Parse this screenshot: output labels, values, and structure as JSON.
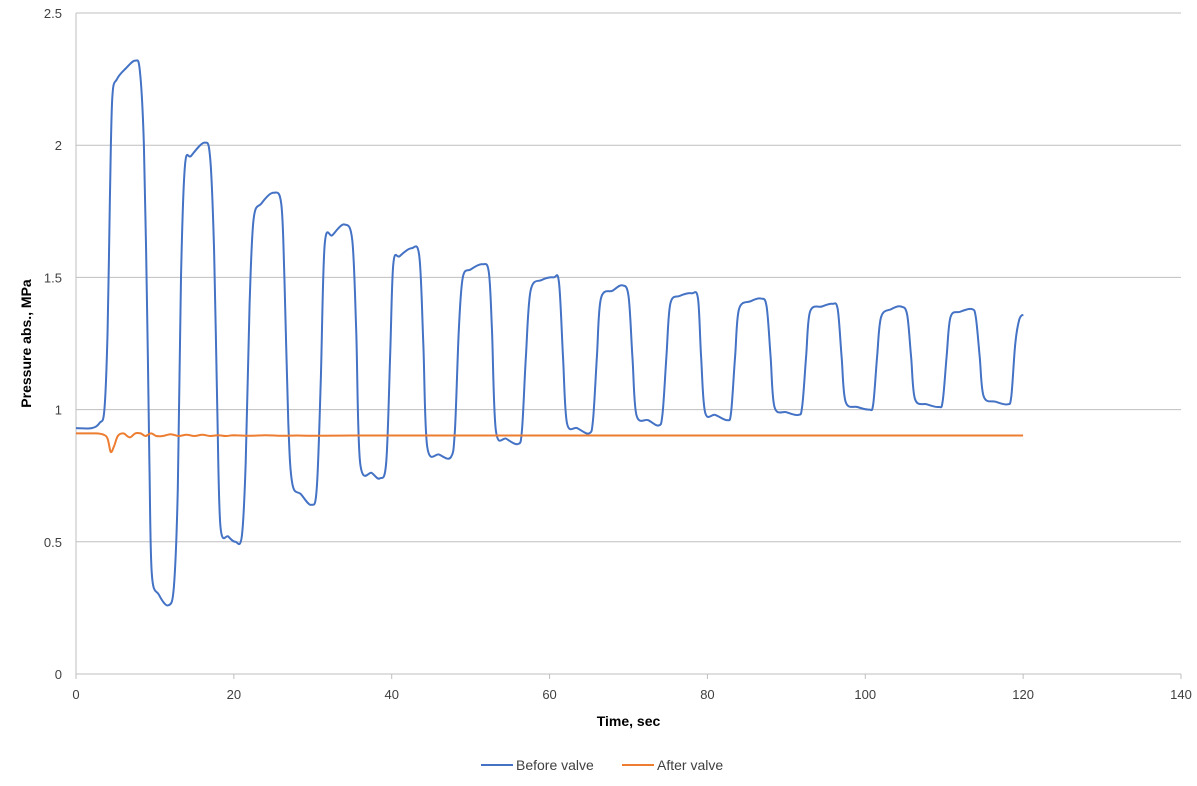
{
  "chart_data": {
    "type": "line",
    "xlabel": "Time, sec",
    "ylabel": "Pressure abs., MPa",
    "xlim": [
      0,
      140
    ],
    "ylim": [
      0,
      2.5
    ],
    "xticks": [
      "0",
      "20",
      "40",
      "60",
      "80",
      "100",
      "120",
      "140"
    ],
    "yticks": [
      "0",
      "0.5",
      "1",
      "1.5",
      "2",
      "2.5"
    ],
    "grid": "horizontal",
    "legend_position": "bottom",
    "colors": {
      "before": "#4472C4",
      "after": "#ED7D31",
      "grid": "#BFBFBF",
      "axis": "#BFBFBF"
    },
    "series": [
      {
        "name": "Before valve",
        "points": [
          [
            0,
            0.93
          ],
          [
            2,
            0.93
          ],
          [
            3,
            0.95
          ],
          [
            3.6,
            1.0
          ],
          [
            4.0,
            1.3
          ],
          [
            4.3,
            1.8
          ],
          [
            4.6,
            2.18
          ],
          [
            5.2,
            2.25
          ],
          [
            6.3,
            2.29
          ],
          [
            7.5,
            2.32
          ],
          [
            8.1,
            2.28
          ],
          [
            8.6,
            2.0
          ],
          [
            9.0,
            1.4
          ],
          [
            9.3,
            0.8
          ],
          [
            9.6,
            0.38
          ],
          [
            10.5,
            0.3
          ],
          [
            11.7,
            0.26
          ],
          [
            12.4,
            0.33
          ],
          [
            12.9,
            0.7
          ],
          [
            13.3,
            1.5
          ],
          [
            13.8,
            1.92
          ],
          [
            14.6,
            1.96
          ],
          [
            16.3,
            2.01
          ],
          [
            17.0,
            1.95
          ],
          [
            17.5,
            1.6
          ],
          [
            17.9,
            1.0
          ],
          [
            18.3,
            0.56
          ],
          [
            19.3,
            0.52
          ],
          [
            20.2,
            0.5
          ],
          [
            21.0,
            0.52
          ],
          [
            21.5,
            0.8
          ],
          [
            22.0,
            1.4
          ],
          [
            22.5,
            1.72
          ],
          [
            23.5,
            1.78
          ],
          [
            25.0,
            1.82
          ],
          [
            26.0,
            1.78
          ],
          [
            26.4,
            1.5
          ],
          [
            26.9,
            0.95
          ],
          [
            27.4,
            0.72
          ],
          [
            28.5,
            0.68
          ],
          [
            29.8,
            0.64
          ],
          [
            30.5,
            0.7
          ],
          [
            31.0,
            1.1
          ],
          [
            31.5,
            1.62
          ],
          [
            32.5,
            1.66
          ],
          [
            34.0,
            1.7
          ],
          [
            35.0,
            1.64
          ],
          [
            35.5,
            1.3
          ],
          [
            36.0,
            0.8
          ],
          [
            37.5,
            0.76
          ],
          [
            38.5,
            0.74
          ],
          [
            39.3,
            0.8
          ],
          [
            39.8,
            1.2
          ],
          [
            40.2,
            1.55
          ],
          [
            41.0,
            1.58
          ],
          [
            42.5,
            1.61
          ],
          [
            43.5,
            1.58
          ],
          [
            44.0,
            1.25
          ],
          [
            44.5,
            0.86
          ],
          [
            46.0,
            0.83
          ],
          [
            47.5,
            0.82
          ],
          [
            48.0,
            0.92
          ],
          [
            48.5,
            1.3
          ],
          [
            49.0,
            1.5
          ],
          [
            50.0,
            1.53
          ],
          [
            51.5,
            1.55
          ],
          [
            52.3,
            1.52
          ],
          [
            52.7,
            1.3
          ],
          [
            53.2,
            0.92
          ],
          [
            54.5,
            0.89
          ],
          [
            56.0,
            0.87
          ],
          [
            56.5,
            0.92
          ],
          [
            57.0,
            1.2
          ],
          [
            57.6,
            1.45
          ],
          [
            59.0,
            1.49
          ],
          [
            60.5,
            1.5
          ],
          [
            61.2,
            1.48
          ],
          [
            61.7,
            1.2
          ],
          [
            62.2,
            0.95
          ],
          [
            63.5,
            0.93
          ],
          [
            65.0,
            0.91
          ],
          [
            65.5,
            0.96
          ],
          [
            66.0,
            1.2
          ],
          [
            66.5,
            1.42
          ],
          [
            68.0,
            1.45
          ],
          [
            69.2,
            1.47
          ],
          [
            70.0,
            1.43
          ],
          [
            70.5,
            1.2
          ],
          [
            71.0,
            0.98
          ],
          [
            72.5,
            0.96
          ],
          [
            73.8,
            0.94
          ],
          [
            74.3,
            0.98
          ],
          [
            74.8,
            1.2
          ],
          [
            75.3,
            1.4
          ],
          [
            76.5,
            1.43
          ],
          [
            78.0,
            1.44
          ],
          [
            78.8,
            1.42
          ],
          [
            79.2,
            1.2
          ],
          [
            79.7,
            0.99
          ],
          [
            81.0,
            0.98
          ],
          [
            82.5,
            0.96
          ],
          [
            83.0,
            0.99
          ],
          [
            83.5,
            1.2
          ],
          [
            84.0,
            1.38
          ],
          [
            85.5,
            1.41
          ],
          [
            86.8,
            1.42
          ],
          [
            87.5,
            1.39
          ],
          [
            88.0,
            1.2
          ],
          [
            88.5,
            1.01
          ],
          [
            90.0,
            0.99
          ],
          [
            91.5,
            0.98
          ],
          [
            92.0,
            1.01
          ],
          [
            92.5,
            1.2
          ],
          [
            93.0,
            1.37
          ],
          [
            94.5,
            1.39
          ],
          [
            95.8,
            1.4
          ],
          [
            96.5,
            1.38
          ],
          [
            97.0,
            1.2
          ],
          [
            97.5,
            1.03
          ],
          [
            99.0,
            1.01
          ],
          [
            100.5,
            1.0
          ],
          [
            101.0,
            1.02
          ],
          [
            101.5,
            1.2
          ],
          [
            102.0,
            1.35
          ],
          [
            103.3,
            1.38
          ],
          [
            104.5,
            1.39
          ],
          [
            105.3,
            1.36
          ],
          [
            105.8,
            1.2
          ],
          [
            106.3,
            1.04
          ],
          [
            107.8,
            1.02
          ],
          [
            109.3,
            1.01
          ],
          [
            109.8,
            1.03
          ],
          [
            110.3,
            1.2
          ],
          [
            110.8,
            1.35
          ],
          [
            112.0,
            1.37
          ],
          [
            113.5,
            1.38
          ],
          [
            114.0,
            1.35
          ],
          [
            114.5,
            1.2
          ],
          [
            115.0,
            1.05
          ],
          [
            116.5,
            1.03
          ],
          [
            118.0,
            1.02
          ],
          [
            118.5,
            1.05
          ],
          [
            119.0,
            1.25
          ],
          [
            119.5,
            1.34
          ],
          [
            120.0,
            1.36
          ]
        ]
      },
      {
        "name": "After valve",
        "points": [
          [
            0,
            0.91
          ],
          [
            2.5,
            0.91
          ],
          [
            3.5,
            0.905
          ],
          [
            4.0,
            0.89
          ],
          [
            4.4,
            0.84
          ],
          [
            4.8,
            0.86
          ],
          [
            5.3,
            0.9
          ],
          [
            6.0,
            0.91
          ],
          [
            6.8,
            0.895
          ],
          [
            7.5,
            0.91
          ],
          [
            8.2,
            0.91
          ],
          [
            8.8,
            0.9
          ],
          [
            9.5,
            0.91
          ],
          [
            10.2,
            0.9
          ],
          [
            11.0,
            0.9
          ],
          [
            12.0,
            0.907
          ],
          [
            13.0,
            0.9
          ],
          [
            14.0,
            0.905
          ],
          [
            15.0,
            0.9
          ],
          [
            16.0,
            0.905
          ],
          [
            17.0,
            0.9
          ],
          [
            18.0,
            0.903
          ],
          [
            19.0,
            0.9
          ],
          [
            20.0,
            0.903
          ],
          [
            22.0,
            0.901
          ],
          [
            24.0,
            0.903
          ],
          [
            26.0,
            0.901
          ],
          [
            28.0,
            0.902
          ],
          [
            30.0,
            0.901
          ],
          [
            35.0,
            0.902
          ],
          [
            40.0,
            0.902
          ],
          [
            50.0,
            0.902
          ],
          [
            60.0,
            0.902
          ],
          [
            70.0,
            0.902
          ],
          [
            80.0,
            0.902
          ],
          [
            90.0,
            0.902
          ],
          [
            100.0,
            0.902
          ],
          [
            110.0,
            0.902
          ],
          [
            120.0,
            0.902
          ]
        ]
      }
    ]
  }
}
